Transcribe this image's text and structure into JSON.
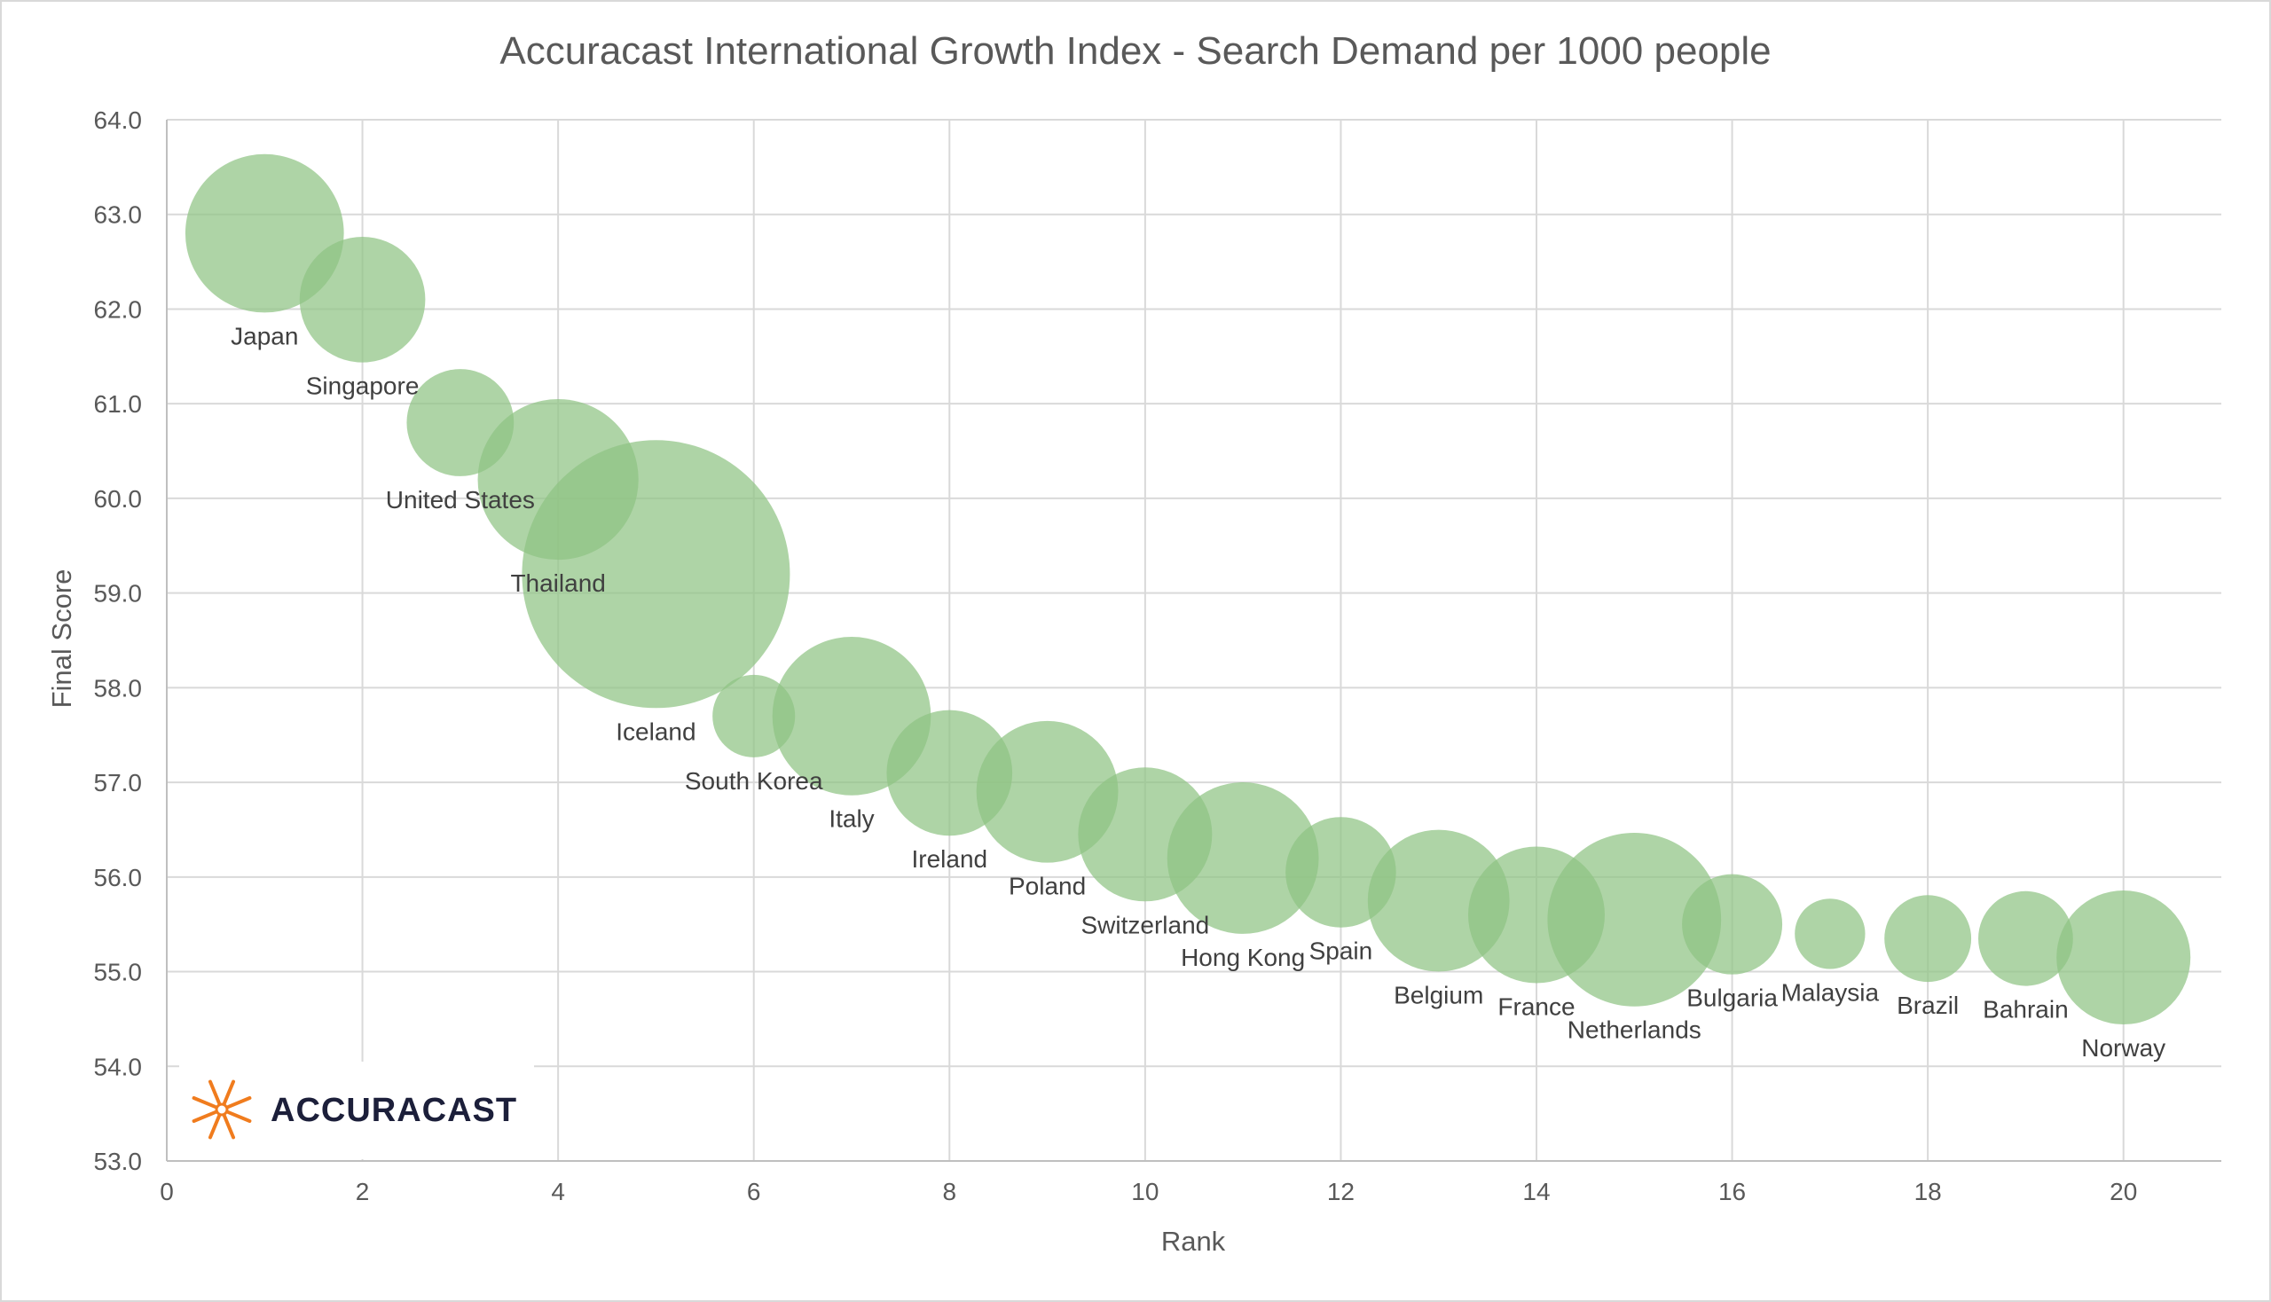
{
  "chart_data": {
    "type": "bubble",
    "title": "Accuracast International Growth Index - Search Demand per 1000 people",
    "xlabel": "Rank",
    "ylabel": "Final Score",
    "xlim": [
      0,
      21
    ],
    "ylim": [
      53,
      64
    ],
    "x_ticks": [
      0,
      2,
      4,
      6,
      8,
      10,
      12,
      14,
      16,
      18,
      20
    ],
    "y_ticks": [
      "53.0",
      "54.0",
      "55.0",
      "56.0",
      "57.0",
      "58.0",
      "59.0",
      "60.0",
      "61.0",
      "62.0",
      "63.0",
      "64.0"
    ],
    "grid": true,
    "legend": "none",
    "bubble_color": "#8fc383",
    "series": [
      {
        "points": [
          {
            "label": "Japan",
            "x": 1,
            "y": 62.8,
            "size": 35
          },
          {
            "label": "Singapore",
            "x": 2,
            "y": 62.1,
            "size": 22
          },
          {
            "label": "United States",
            "x": 3,
            "y": 60.8,
            "size": 16
          },
          {
            "label": "Thailand",
            "x": 4,
            "y": 60.2,
            "size": 36
          },
          {
            "label": "Iceland",
            "x": 5,
            "y": 59.2,
            "size": 100
          },
          {
            "label": "South Korea",
            "x": 6,
            "y": 57.7,
            "size": 9.5
          },
          {
            "label": "Italy",
            "x": 7,
            "y": 57.7,
            "size": 35
          },
          {
            "label": "Ireland",
            "x": 8,
            "y": 57.1,
            "size": 22
          },
          {
            "label": "Poland",
            "x": 9,
            "y": 56.9,
            "size": 28
          },
          {
            "label": "Switzerland",
            "x": 10,
            "y": 56.45,
            "size": 25
          },
          {
            "label": "Hong Kong",
            "x": 11,
            "y": 56.2,
            "size": 32
          },
          {
            "label": "Spain",
            "x": 12,
            "y": 56.05,
            "size": 17
          },
          {
            "label": "Belgium",
            "x": 13,
            "y": 55.75,
            "size": 28
          },
          {
            "label": "France",
            "x": 14,
            "y": 55.6,
            "size": 26
          },
          {
            "label": "Netherlands",
            "x": 15,
            "y": 55.55,
            "size": 42
          },
          {
            "label": "Bulgaria",
            "x": 16,
            "y": 55.5,
            "size": 14
          },
          {
            "label": "Malaysia",
            "x": 17,
            "y": 55.4,
            "size": 6.9
          },
          {
            "label": "Brazil",
            "x": 18,
            "y": 55.35,
            "size": 10.5
          },
          {
            "label": "Bahrain",
            "x": 19,
            "y": 55.35,
            "size": 12.5
          },
          {
            "label": "Norway",
            "x": 20,
            "y": 55.15,
            "size": 25
          }
        ]
      }
    ]
  },
  "logo": {
    "text": "ACCURACAST",
    "mark_color": "#f07c1e",
    "text_color": "#1c1f3a"
  }
}
